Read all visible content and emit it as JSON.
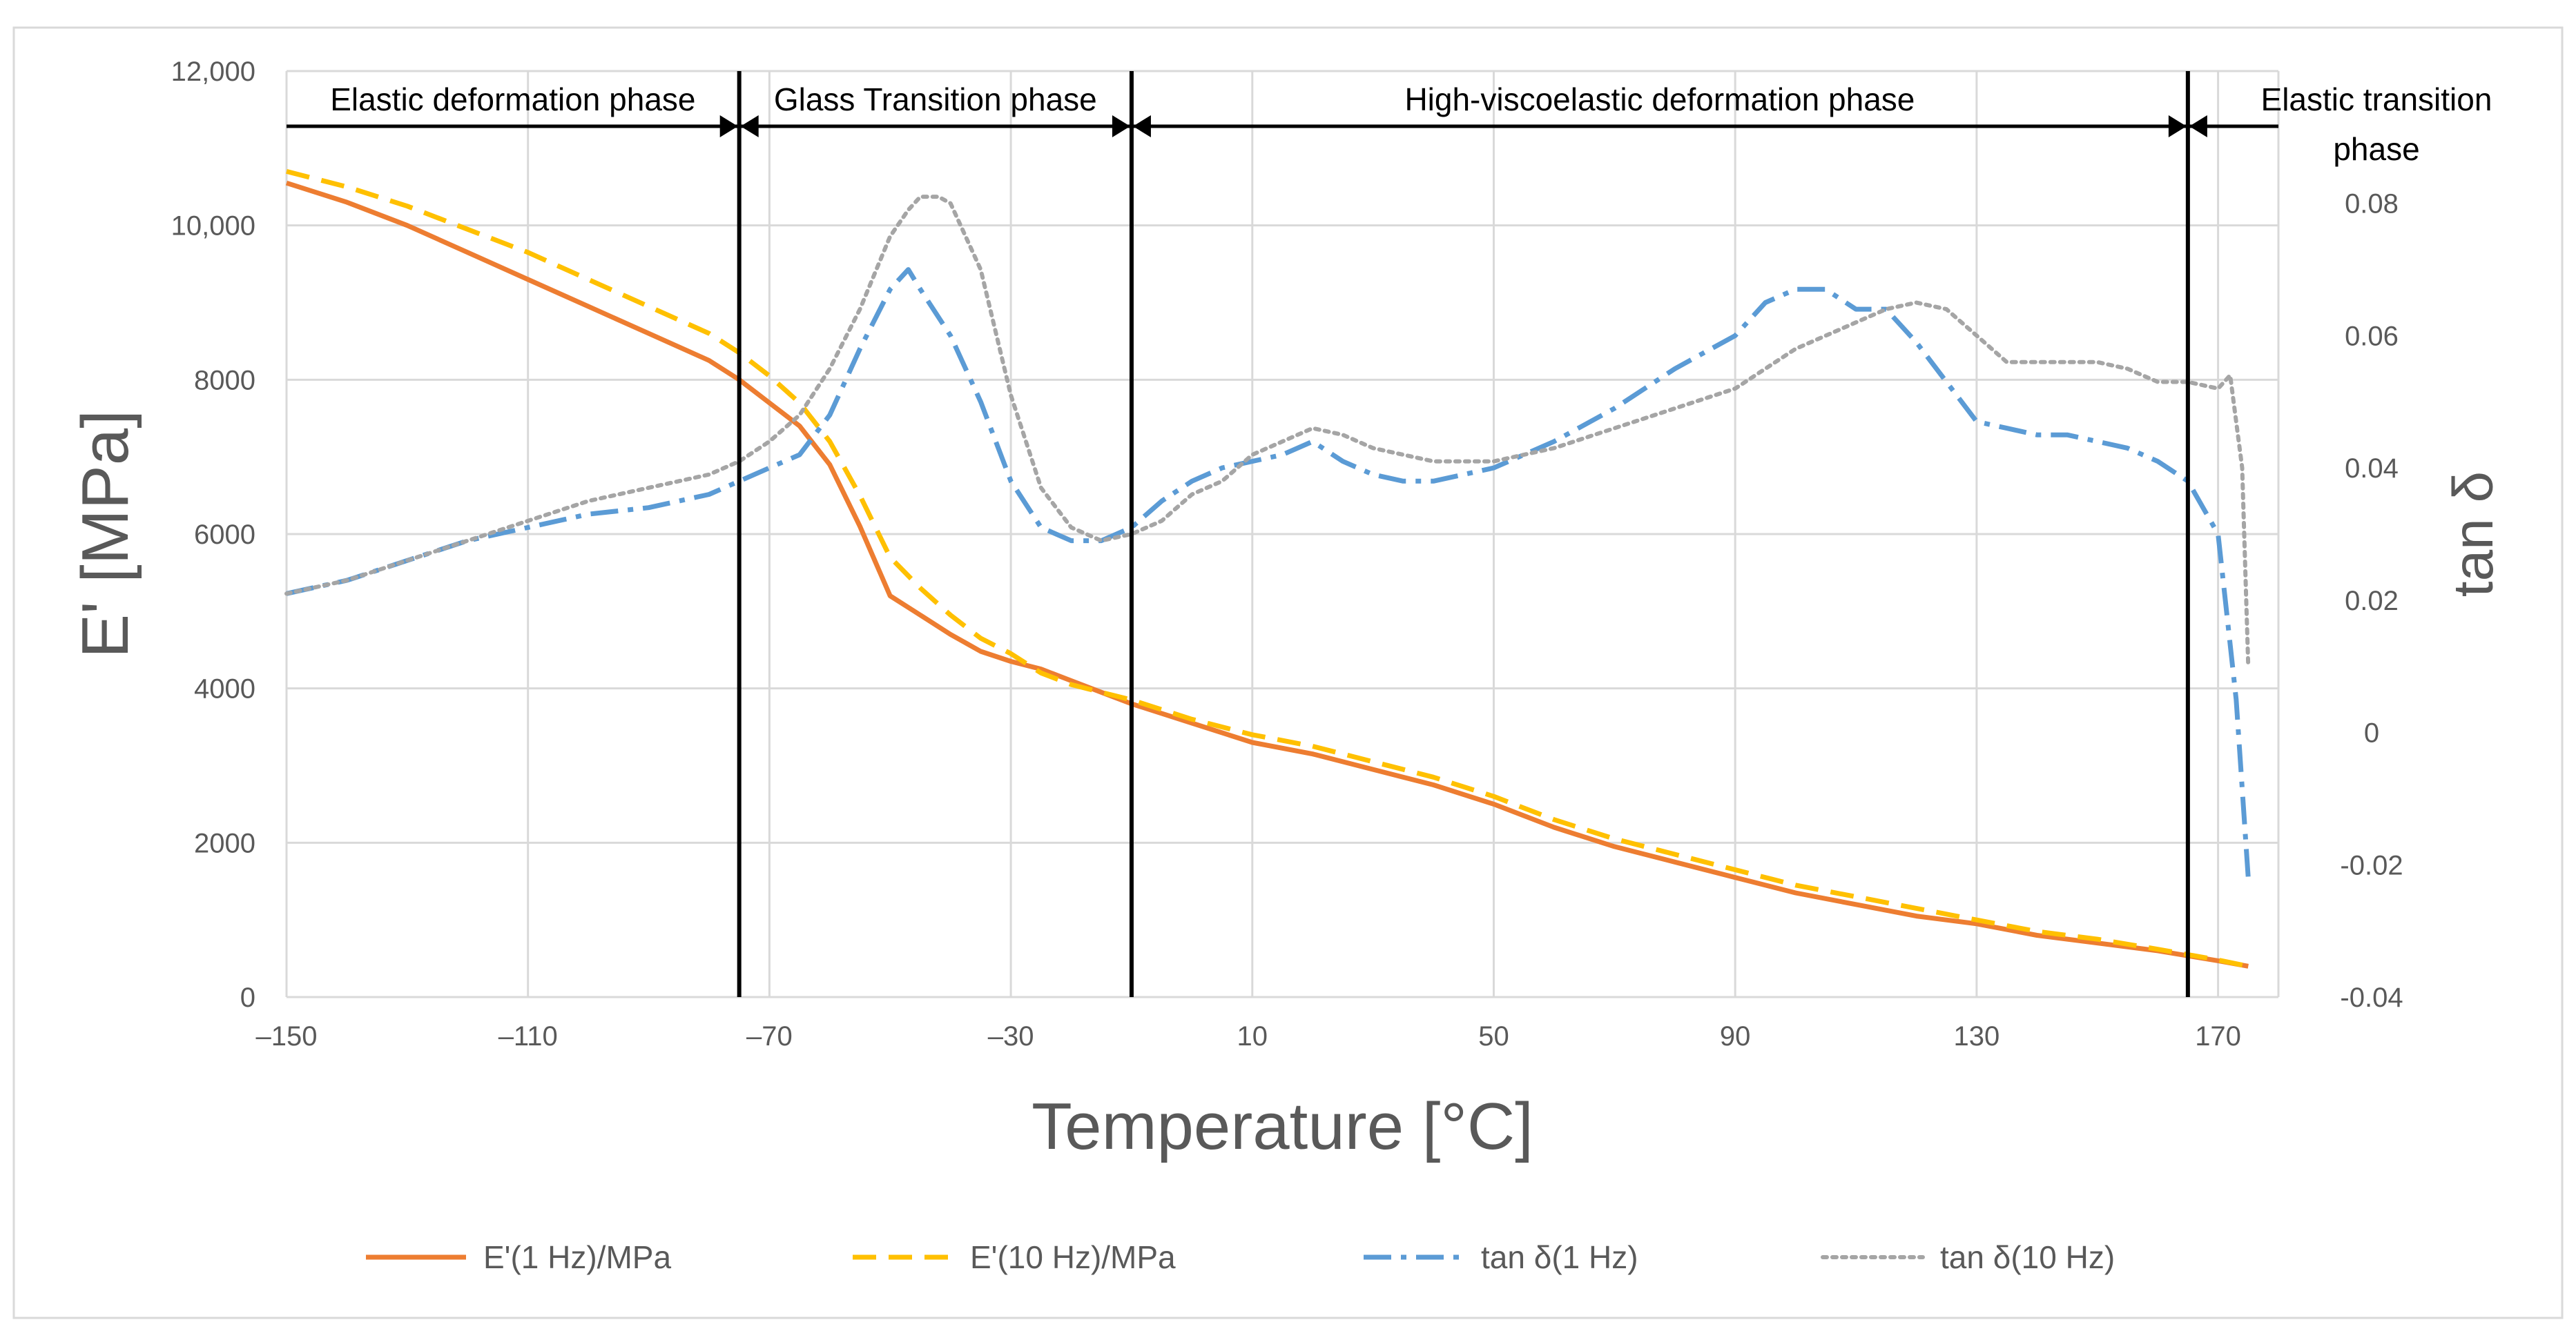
{
  "colors": {
    "e1": "#ED7D31",
    "e10": "#FFC000",
    "tan1": "#5B9BD5",
    "tan10": "#A5A5A5",
    "grid": "#D9D9D9",
    "text": "#595959",
    "phase_line": "#000000",
    "frame": "#D9D9D9"
  },
  "chart_data": {
    "type": "line",
    "title": "",
    "xlabel": "Temperature [°C]",
    "ylabel": "E' [MPa]",
    "y2label": "tan δ",
    "xlim": [
      -150,
      180
    ],
    "ylim": [
      0,
      12000
    ],
    "y2lim": [
      -0.04,
      0.1
    ],
    "x_ticks": [
      -150,
      -110,
      -70,
      -30,
      10,
      50,
      90,
      130,
      170
    ],
    "x_tick_labels": [
      "–150",
      "–110",
      "–70",
      "–30",
      "10",
      "50",
      "90",
      "130",
      "170"
    ],
    "y_ticks": [
      0,
      2000,
      4000,
      6000,
      8000,
      10000,
      12000
    ],
    "y_tick_labels": [
      "0",
      "2000",
      "4000",
      "6000",
      "8000",
      "10,000",
      "12,000"
    ],
    "y2_ticks": [
      -0.04,
      -0.02,
      0,
      0.02,
      0.04,
      0.06,
      0.08
    ],
    "y2_tick_labels": [
      "-0.04",
      "-0.02",
      "0",
      "0.02",
      "0.04",
      "0.06",
      "0.08"
    ],
    "grid": true,
    "legend_position": "bottom",
    "phases": [
      {
        "label": "Elastic deformation phase",
        "x_start": -150,
        "x_end": -75
      },
      {
        "label": "Glass Transition phase",
        "x_start": -75,
        "x_end": -10
      },
      {
        "label": "High-viscoelastic deformation phase",
        "x_start": -10,
        "x_end": 165
      },
      {
        "label_lines": [
          "Elastic transition",
          "phase"
        ],
        "x_start": 165,
        "x_end": 180
      }
    ],
    "phase_boundaries": [
      -75,
      -10,
      165
    ],
    "series": [
      {
        "name": "E'(1 Hz)/MPa",
        "axis": "left",
        "style": "solid",
        "x": [
          -150,
          -140,
          -130,
          -120,
          -110,
          -100,
          -90,
          -80,
          -75,
          -70,
          -65,
          -60,
          -55,
          -50,
          -45,
          -40,
          -35,
          -30,
          -25,
          -20,
          -15,
          -10,
          0,
          10,
          20,
          30,
          40,
          50,
          60,
          70,
          80,
          90,
          100,
          110,
          120,
          130,
          140,
          150,
          160,
          170,
          175
        ],
        "values": [
          10550,
          10300,
          10000,
          9650,
          9300,
          8950,
          8600,
          8250,
          8000,
          7700,
          7400,
          6900,
          6100,
          5200,
          4950,
          4700,
          4480,
          4350,
          4250,
          4100,
          3950,
          3800,
          3550,
          3300,
          3150,
          2950,
          2750,
          2500,
          2200,
          1950,
          1750,
          1550,
          1350,
          1200,
          1050,
          950,
          800,
          700,
          600,
          470,
          400
        ]
      },
      {
        "name": "E'(10 Hz)/MPa",
        "axis": "left",
        "style": "dashed",
        "x": [
          -150,
          -140,
          -130,
          -120,
          -110,
          -100,
          -90,
          -80,
          -75,
          -70,
          -65,
          -60,
          -55,
          -50,
          -45,
          -40,
          -35,
          -30,
          -25,
          -20,
          -15,
          -10,
          0,
          10,
          20,
          30,
          40,
          50,
          60,
          70,
          80,
          90,
          100,
          110,
          120,
          130,
          140,
          150,
          160,
          170,
          175
        ],
        "values": [
          10700,
          10500,
          10250,
          9950,
          9650,
          9300,
          8950,
          8600,
          8350,
          8050,
          7700,
          7200,
          6500,
          5700,
          5300,
          4950,
          4650,
          4450,
          4200,
          4050,
          3950,
          3850,
          3600,
          3400,
          3250,
          3050,
          2850,
          2600,
          2300,
          2050,
          1850,
          1650,
          1450,
          1300,
          1150,
          1000,
          850,
          750,
          620,
          480,
          400
        ]
      },
      {
        "name": "tan δ(1 Hz)",
        "axis": "right",
        "style": "dashdot",
        "x": [
          -150,
          -140,
          -130,
          -120,
          -110,
          -100,
          -90,
          -80,
          -75,
          -70,
          -65,
          -60,
          -55,
          -50,
          -47,
          -45,
          -40,
          -35,
          -30,
          -25,
          -20,
          -15,
          -10,
          -5,
          0,
          5,
          10,
          15,
          20,
          25,
          30,
          35,
          40,
          45,
          50,
          55,
          60,
          70,
          80,
          90,
          95,
          100,
          105,
          110,
          115,
          120,
          125,
          130,
          135,
          140,
          145,
          150,
          155,
          160,
          165,
          170,
          173,
          175
        ],
        "values": [
          0.021,
          0.023,
          0.026,
          0.029,
          0.031,
          0.033,
          0.034,
          0.036,
          0.038,
          0.04,
          0.042,
          0.048,
          0.058,
          0.067,
          0.07,
          0.067,
          0.06,
          0.05,
          0.038,
          0.031,
          0.029,
          0.029,
          0.031,
          0.035,
          0.038,
          0.04,
          0.041,
          0.042,
          0.044,
          0.041,
          0.039,
          0.038,
          0.038,
          0.039,
          0.04,
          0.042,
          0.044,
          0.049,
          0.055,
          0.06,
          0.065,
          0.067,
          0.067,
          0.064,
          0.064,
          0.059,
          0.053,
          0.047,
          0.046,
          0.045,
          0.045,
          0.044,
          0.043,
          0.041,
          0.038,
          0.03,
          0.005,
          -0.022
        ]
      },
      {
        "name": "tan δ(10 Hz)",
        "axis": "right",
        "style": "dotted",
        "x": [
          -150,
          -140,
          -130,
          -120,
          -110,
          -100,
          -90,
          -80,
          -75,
          -70,
          -65,
          -60,
          -55,
          -50,
          -47,
          -45,
          -42,
          -40,
          -35,
          -30,
          -25,
          -20,
          -15,
          -10,
          -5,
          0,
          5,
          10,
          15,
          20,
          25,
          30,
          40,
          50,
          60,
          70,
          80,
          90,
          100,
          110,
          115,
          120,
          125,
          130,
          135,
          140,
          145,
          150,
          155,
          160,
          165,
          170,
          172,
          174,
          175
        ],
        "values": [
          0.021,
          0.023,
          0.026,
          0.029,
          0.032,
          0.035,
          0.037,
          0.039,
          0.041,
          0.044,
          0.048,
          0.055,
          0.064,
          0.075,
          0.079,
          0.081,
          0.081,
          0.08,
          0.07,
          0.051,
          0.037,
          0.031,
          0.029,
          0.03,
          0.032,
          0.036,
          0.038,
          0.042,
          0.044,
          0.046,
          0.045,
          0.043,
          0.041,
          0.041,
          0.043,
          0.046,
          0.049,
          0.052,
          0.058,
          0.062,
          0.064,
          0.065,
          0.064,
          0.06,
          0.056,
          0.056,
          0.056,
          0.056,
          0.055,
          0.053,
          0.053,
          0.052,
          0.054,
          0.04,
          0.01
        ]
      }
    ]
  }
}
